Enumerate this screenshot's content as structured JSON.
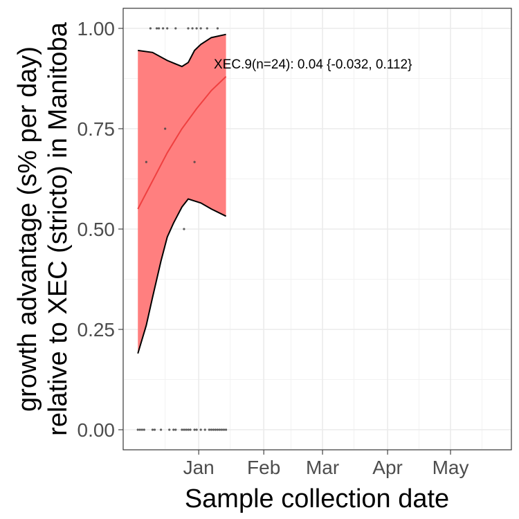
{
  "chart_data": {
    "type": "scatter",
    "annotation": "XEC.9(n=24): 0.04 {-0.032, 0.112}",
    "xlabel": "Sample collection date",
    "ylabel_line1": "growth advantage (s% per day)",
    "ylabel_line2": "relative to XEC (stricto) in Manitoba",
    "x_range": [
      "2024-11-26",
      "2025-05-30"
    ],
    "ylim": [
      -0.05,
      1.05
    ],
    "x_ticks": [
      {
        "date": "2025-01-01",
        "label": "Jan"
      },
      {
        "date": "2025-02-01",
        "label": "Feb"
      },
      {
        "date": "2025-03-01",
        "label": "Mar"
      },
      {
        "date": "2025-04-01",
        "label": "Apr"
      },
      {
        "date": "2025-05-01",
        "label": "May"
      }
    ],
    "x_minor_ticks": [
      "2024-12-16",
      "2025-01-16",
      "2025-02-14",
      "2025-03-16",
      "2025-04-16",
      "2025-05-16"
    ],
    "y_ticks": [
      {
        "value": 0.0,
        "label": "0.00"
      },
      {
        "value": 0.25,
        "label": "0.25"
      },
      {
        "value": 0.5,
        "label": "0.50"
      },
      {
        "value": 0.75,
        "label": "0.75"
      },
      {
        "value": 1.0,
        "label": "1.00"
      }
    ],
    "y_minor_ticks": [
      0.125,
      0.375,
      0.625,
      0.875
    ],
    "grid": true,
    "colors": {
      "ribbon": "#ff7f7f",
      "fit": "#ef4040",
      "bound": "#000000",
      "points": "#444444"
    },
    "points_top": [
      {
        "x": "2024-12-09",
        "y": 1.0
      },
      {
        "x": "2024-12-12",
        "y": 1.0
      },
      {
        "x": "2024-12-13",
        "y": 1.0
      },
      {
        "x": "2024-12-15",
        "y": 1.0
      },
      {
        "x": "2024-12-17",
        "y": 1.0
      },
      {
        "x": "2024-12-21",
        "y": 1.0
      },
      {
        "x": "2024-12-27",
        "y": 1.0
      },
      {
        "x": "2024-12-29",
        "y": 1.0
      },
      {
        "x": "2024-12-31",
        "y": 1.0
      },
      {
        "x": "2025-01-02",
        "y": 1.0
      },
      {
        "x": "2025-01-05",
        "y": 1.0
      },
      {
        "x": "2025-01-10",
        "y": 1.0
      }
    ],
    "points_mid": [
      {
        "x": "2024-12-07",
        "y": 0.667
      },
      {
        "x": "2024-12-16",
        "y": 0.75
      },
      {
        "x": "2024-12-25",
        "y": 0.5
      },
      {
        "x": "2024-12-30",
        "y": 0.667
      }
    ],
    "points_bottom": [
      {
        "x": "2024-12-03",
        "y": 0.0
      },
      {
        "x": "2024-12-04",
        "y": 0.0
      },
      {
        "x": "2024-12-05",
        "y": 0.0
      },
      {
        "x": "2024-12-06",
        "y": 0.0
      },
      {
        "x": "2024-12-10",
        "y": 0.0
      },
      {
        "x": "2024-12-11",
        "y": 0.0
      },
      {
        "x": "2024-12-14",
        "y": 0.0
      },
      {
        "x": "2024-12-18",
        "y": 0.0
      },
      {
        "x": "2024-12-20",
        "y": 0.0
      },
      {
        "x": "2024-12-21",
        "y": 0.0
      },
      {
        "x": "2024-12-24",
        "y": 0.0
      },
      {
        "x": "2024-12-25",
        "y": 0.0
      },
      {
        "x": "2024-12-26",
        "y": 0.0
      },
      {
        "x": "2024-12-27",
        "y": 0.0
      },
      {
        "x": "2024-12-28",
        "y": 0.0
      },
      {
        "x": "2024-12-30",
        "y": 0.0
      },
      {
        "x": "2024-12-31",
        "y": 0.0
      },
      {
        "x": "2025-01-02",
        "y": 0.0
      },
      {
        "x": "2025-01-04",
        "y": 0.0
      },
      {
        "x": "2025-01-06",
        "y": 0.0
      },
      {
        "x": "2025-01-07",
        "y": 0.0
      },
      {
        "x": "2025-01-08",
        "y": 0.0
      },
      {
        "x": "2025-01-09",
        "y": 0.0
      },
      {
        "x": "2025-01-10",
        "y": 0.0
      },
      {
        "x": "2025-01-11",
        "y": 0.0
      },
      {
        "x": "2025-01-12",
        "y": 0.0
      },
      {
        "x": "2025-01-13",
        "y": 0.0
      },
      {
        "x": "2025-01-14",
        "y": 0.0
      }
    ],
    "fit": [
      {
        "x": "2024-12-03",
        "y": 0.55
      },
      {
        "x": "2024-12-10",
        "y": 0.62
      },
      {
        "x": "2024-12-17",
        "y": 0.69
      },
      {
        "x": "2024-12-24",
        "y": 0.75
      },
      {
        "x": "2024-12-31",
        "y": 0.8
      },
      {
        "x": "2025-01-07",
        "y": 0.845
      },
      {
        "x": "2025-01-14",
        "y": 0.88
      }
    ],
    "upper": [
      {
        "x": "2024-12-03",
        "y": 0.945
      },
      {
        "x": "2024-12-10",
        "y": 0.94
      },
      {
        "x": "2024-12-17",
        "y": 0.92
      },
      {
        "x": "2024-12-24",
        "y": 0.905
      },
      {
        "x": "2024-12-27",
        "y": 0.915
      },
      {
        "x": "2024-12-30",
        "y": 0.945
      },
      {
        "x": "2025-01-02",
        "y": 0.96
      },
      {
        "x": "2025-01-07",
        "y": 0.977
      },
      {
        "x": "2025-01-14",
        "y": 0.985
      }
    ],
    "lower": [
      {
        "x": "2024-12-03",
        "y": 0.19
      },
      {
        "x": "2024-12-07",
        "y": 0.26
      },
      {
        "x": "2024-12-10",
        "y": 0.33
      },
      {
        "x": "2024-12-14",
        "y": 0.42
      },
      {
        "x": "2024-12-17",
        "y": 0.48
      },
      {
        "x": "2024-12-20",
        "y": 0.515
      },
      {
        "x": "2024-12-24",
        "y": 0.555
      },
      {
        "x": "2024-12-27",
        "y": 0.575
      },
      {
        "x": "2024-12-30",
        "y": 0.57
      },
      {
        "x": "2025-01-02",
        "y": 0.565
      },
      {
        "x": "2025-01-07",
        "y": 0.55
      },
      {
        "x": "2025-01-14",
        "y": 0.532
      }
    ]
  }
}
